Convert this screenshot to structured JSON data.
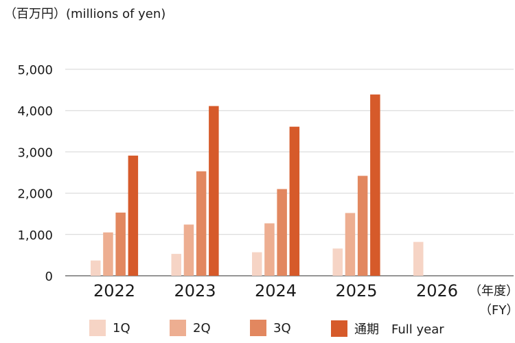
{
  "header": {
    "unit_label": "（百万円）(millions of yen)"
  },
  "axis": {
    "fy_label_jp": "（年度）",
    "fy_label_en": "（FY）"
  },
  "chart_data": {
    "type": "bar",
    "categories": [
      "2022",
      "2023",
      "2024",
      "2025",
      "2026"
    ],
    "ylim": [
      0,
      5000
    ],
    "yticks": [
      0,
      1000,
      2000,
      3000,
      4000,
      5000
    ],
    "ytick_labels": [
      "0",
      "1,000",
      "2,000",
      "3,000",
      "4,000",
      "5,000"
    ],
    "grid": true,
    "legend_position": "bottom",
    "series": [
      {
        "name": "1Q",
        "color": "#f6d4c5",
        "values": [
          370,
          530,
          570,
          660,
          820
        ]
      },
      {
        "name": "2Q",
        "color": "#edae91",
        "values": [
          1050,
          1240,
          1270,
          1520,
          null
        ]
      },
      {
        "name": "3Q",
        "color": "#e2875f",
        "values": [
          1530,
          2530,
          2100,
          2420,
          null
        ]
      },
      {
        "name": "通期　Full year",
        "color": "#d65a2a",
        "values": [
          2910,
          4110,
          3610,
          4390,
          null
        ]
      }
    ]
  }
}
